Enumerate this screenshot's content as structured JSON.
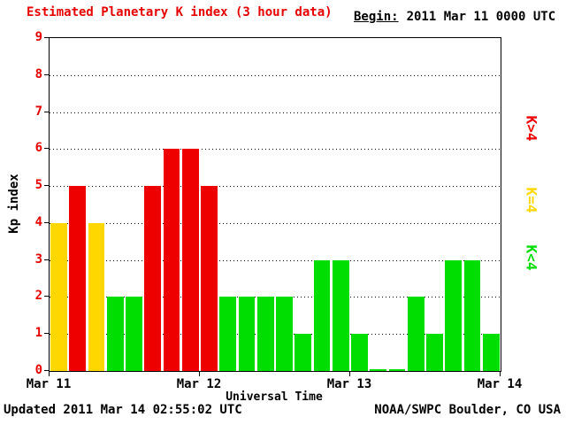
{
  "header": {
    "title": "Estimated Planetary K index (3 hour data)",
    "begin_label": "Begin:",
    "begin_value": "2011 Mar 11 0000 UTC"
  },
  "chart_data": {
    "type": "bar",
    "title": "Estimated Planetary K index (3 hour data)",
    "begin": "2011 Mar 11 0000 UTC",
    "xlabel": "Universal Time",
    "ylabel": "Kp index",
    "ylim": [
      0,
      9
    ],
    "yticks": [
      0,
      1,
      2,
      3,
      4,
      5,
      6,
      7,
      8,
      9
    ],
    "x_day_ticks": [
      "Mar 11",
      "Mar 12",
      "Mar 13",
      "Mar 14"
    ],
    "interval_hours": 3,
    "values": [
      4,
      5,
      4,
      2,
      2,
      5,
      6,
      6,
      5,
      2,
      2,
      2,
      2,
      1,
      3,
      3,
      1,
      0,
      0,
      2,
      1,
      3,
      3,
      1
    ],
    "color_rule": {
      "gt4": "#ee0000",
      "eq4": "#ffd700",
      "lt4": "#00dd00"
    },
    "grid": "horizontal-dotted",
    "legend_position": "right"
  },
  "legend": {
    "items": [
      {
        "name": "k-gt-4",
        "label": "K>4",
        "color": "#ee0000"
      },
      {
        "name": "k-eq-4",
        "label": "K=4",
        "color": "#ffd700"
      },
      {
        "name": "k-lt-4",
        "label": "K<4",
        "color": "#00dd00"
      }
    ]
  },
  "footer": {
    "updated": "Updated 2011 Mar 14 02:55:02 UTC",
    "credit": "NOAA/SWPC Boulder, CO USA"
  }
}
